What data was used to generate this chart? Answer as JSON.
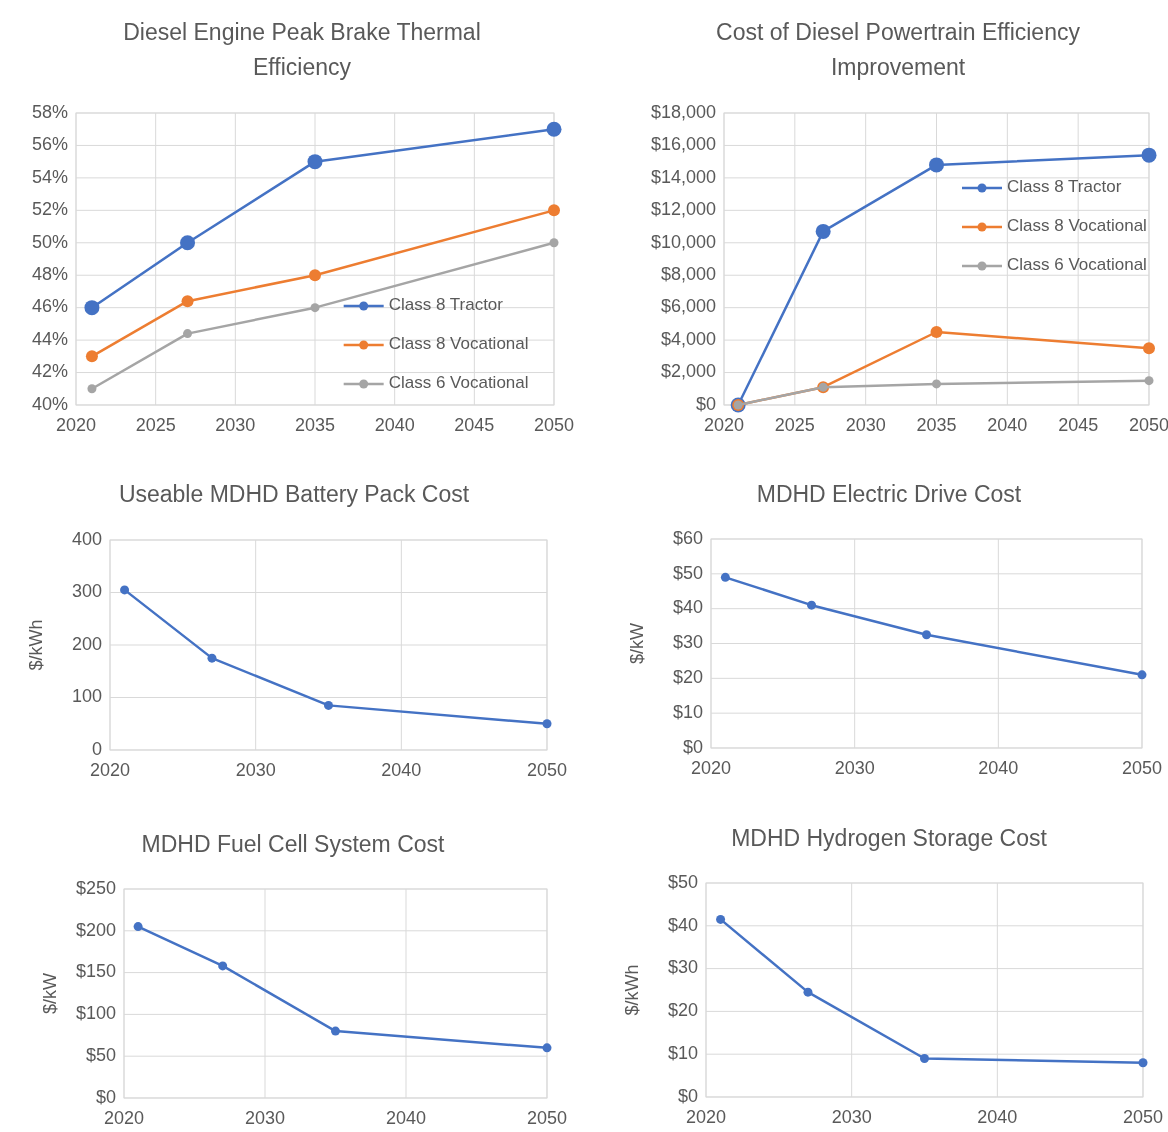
{
  "chart_data": [
    {
      "type": "line",
      "title": "Diesel Engine Peak Brake Thermal Efficiency",
      "x": [
        2021,
        2027,
        2035,
        2050
      ],
      "xlim": [
        2020,
        2050
      ],
      "xticks": [
        2020,
        2025,
        2030,
        2035,
        2040,
        2045,
        2050
      ],
      "ylim": [
        40,
        58
      ],
      "yticks": [
        {
          "value": 40,
          "label": "40%"
        },
        {
          "value": 42,
          "label": "42%"
        },
        {
          "value": 44,
          "label": "44%"
        },
        {
          "value": 46,
          "label": "46%"
        },
        {
          "value": 48,
          "label": "48%"
        },
        {
          "value": 50,
          "label": "50%"
        },
        {
          "value": 52,
          "label": "52%"
        },
        {
          "value": 54,
          "label": "54%"
        },
        {
          "value": 56,
          "label": "56%"
        },
        {
          "value": 58,
          "label": "58%"
        }
      ],
      "grid": true,
      "marker": "circle",
      "legend": "bottom right",
      "series": [
        {
          "name": "Class 8 Tractor",
          "color": "#4472c4",
          "values": [
            46,
            50,
            55,
            57
          ]
        },
        {
          "name": "Class 8 Vocational",
          "color": "#ed7d31",
          "values": [
            43,
            46.4,
            48,
            52
          ]
        },
        {
          "name": "Class 6 Vocational",
          "color": "#a5a5a5",
          "values": [
            41,
            44.4,
            46,
            50
          ]
        }
      ]
    },
    {
      "type": "line",
      "title": "Cost of Diesel Powertrain Efficiency Improvement",
      "x": [
        2021,
        2027,
        2035,
        2050
      ],
      "xlim": [
        2020,
        2050
      ],
      "xticks": [
        2020,
        2025,
        2030,
        2035,
        2040,
        2045,
        2050
      ],
      "ylim": [
        0,
        18000
      ],
      "yticks": [
        {
          "value": 0,
          "label": "$0"
        },
        {
          "value": 2000,
          "label": "$2,000"
        },
        {
          "value": 4000,
          "label": "$4,000"
        },
        {
          "value": 6000,
          "label": "$6,000"
        },
        {
          "value": 8000,
          "label": "$8,000"
        },
        {
          "value": 10000,
          "label": "$10,000"
        },
        {
          "value": 12000,
          "label": "$12,000"
        },
        {
          "value": 14000,
          "label": "$14,000"
        },
        {
          "value": 16000,
          "label": "$16,000"
        },
        {
          "value": 18000,
          "label": "$18,000"
        }
      ],
      "grid": true,
      "marker": "circle",
      "legend": "top right",
      "series": [
        {
          "name": "Class 8 Tractor",
          "color": "#4472c4",
          "values": [
            0,
            10700,
            14800,
            15400
          ]
        },
        {
          "name": "Class 8 Vocational",
          "color": "#ed7d31",
          "values": [
            0,
            1100,
            4500,
            3500
          ]
        },
        {
          "name": "Class 6 Vocational",
          "color": "#a5a5a5",
          "values": [
            0,
            1100,
            1300,
            1500
          ]
        }
      ]
    },
    {
      "type": "line",
      "title": "Useable MDHD Battery Pack Cost",
      "ylabel": "$/kWh",
      "x": [
        2021,
        2027,
        2035,
        2050
      ],
      "xlim": [
        2020,
        2050
      ],
      "xticks": [
        2020,
        2030,
        2040,
        2050
      ],
      "ylim": [
        0,
        400
      ],
      "yticks": [
        0,
        100,
        200,
        300,
        400
      ],
      "grid": true,
      "marker": "circle",
      "series": [
        {
          "color": "#4472c4",
          "values": [
            305,
            175,
            85,
            50
          ]
        }
      ]
    },
    {
      "type": "line",
      "title": "MDHD Electric Drive Cost",
      "ylabel": "$/kW",
      "x": [
        2021,
        2027,
        2035,
        2050
      ],
      "xlim": [
        2020,
        2050
      ],
      "xticks": [
        2020,
        2030,
        2040,
        2050
      ],
      "ylim": [
        0,
        60
      ],
      "yticks": [
        {
          "value": 0,
          "label": "$0"
        },
        {
          "value": 10,
          "label": "$10"
        },
        {
          "value": 20,
          "label": "$20"
        },
        {
          "value": 30,
          "label": "$30"
        },
        {
          "value": 40,
          "label": "$40"
        },
        {
          "value": 50,
          "label": "$50"
        },
        {
          "value": 60,
          "label": "$60"
        }
      ],
      "grid": true,
      "marker": "circle",
      "series": [
        {
          "color": "#4472c4",
          "values": [
            49,
            41,
            32.5,
            21
          ]
        }
      ]
    },
    {
      "type": "line",
      "title": "MDHD Fuel Cell System Cost",
      "ylabel": "$/kW",
      "x": [
        2021,
        2027,
        2035,
        2050
      ],
      "xlim": [
        2020,
        2050
      ],
      "xticks": [
        2020,
        2030,
        2040,
        2050
      ],
      "ylim": [
        0,
        250
      ],
      "yticks": [
        {
          "value": 0,
          "label": "$0"
        },
        {
          "value": 50,
          "label": "$50"
        },
        {
          "value": 100,
          "label": "$100"
        },
        {
          "value": 150,
          "label": "$150"
        },
        {
          "value": 200,
          "label": "$200"
        },
        {
          "value": 250,
          "label": "$250"
        }
      ],
      "grid": true,
      "marker": "circle",
      "series": [
        {
          "color": "#4472c4",
          "values": [
            205,
            158,
            80,
            60
          ]
        }
      ]
    },
    {
      "type": "line",
      "title": "MDHD Hydrogen Storage Cost",
      "ylabel": "$/kWh",
      "x": [
        2021,
        2027,
        2035,
        2050
      ],
      "xlim": [
        2020,
        2050
      ],
      "xticks": [
        2020,
        2030,
        2040,
        2050
      ],
      "ylim": [
        0,
        50
      ],
      "yticks": [
        {
          "value": 0,
          "label": "$0"
        },
        {
          "value": 10,
          "label": "$10"
        },
        {
          "value": 20,
          "label": "$20"
        },
        {
          "value": 30,
          "label": "$30"
        },
        {
          "value": 40,
          "label": "$40"
        },
        {
          "value": 50,
          "label": "$50"
        }
      ],
      "grid": true,
      "marker": "circle",
      "series": [
        {
          "color": "#4472c4",
          "values": [
            41.5,
            24.5,
            9,
            8
          ]
        }
      ]
    }
  ]
}
